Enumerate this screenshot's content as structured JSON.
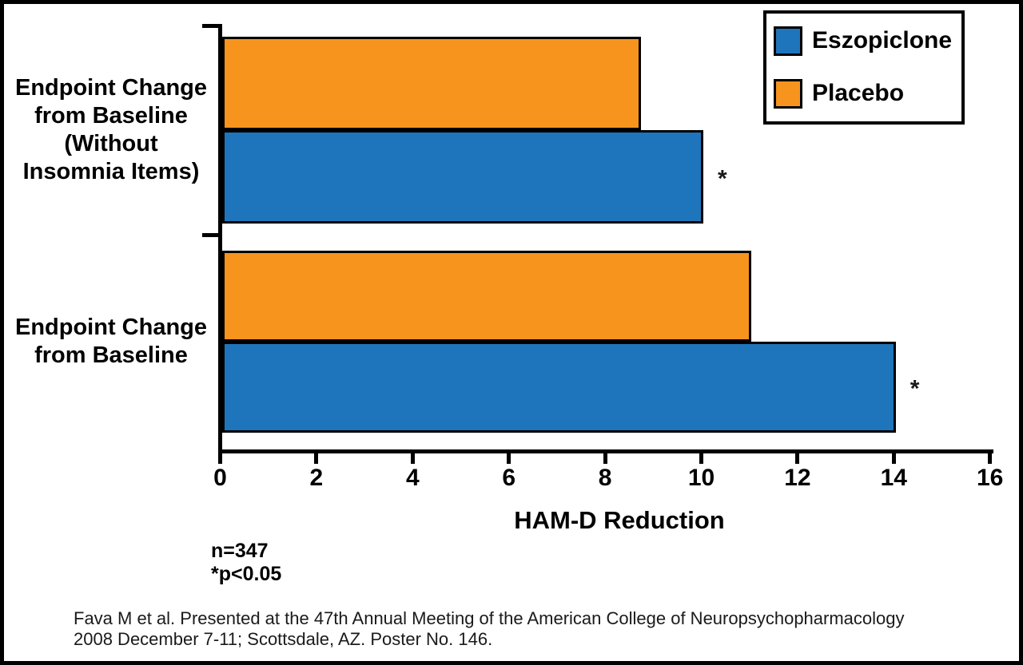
{
  "legend": {
    "items": [
      {
        "label": "Eszopiclone",
        "color": "#1F75BB"
      },
      {
        "label": "Placebo",
        "color": "#F7941E"
      }
    ]
  },
  "chart_data": {
    "type": "bar",
    "orientation": "horizontal",
    "xlabel": "HAM-D Reduction",
    "xlim": [
      0,
      16
    ],
    "xticks": [
      0,
      2,
      4,
      6,
      8,
      10,
      12,
      14,
      16
    ],
    "grid": false,
    "legend_position": "top-right",
    "categories": [
      {
        "label": "Endpoint Change from Baseline (Without Insomnia Items)",
        "lines": [
          "Endpoint Change",
          "from Baseline",
          "(Without",
          "Insomnia Items)"
        ]
      },
      {
        "label": "Endpoint Change from Baseline",
        "lines": [
          "Endpoint Change",
          "from Baseline"
        ]
      }
    ],
    "series": [
      {
        "name": "Eszopiclone",
        "color": "#1F75BB",
        "values": [
          10,
          14
        ],
        "significant": [
          true,
          true
        ]
      },
      {
        "name": "Placebo",
        "color": "#F7941E",
        "values": [
          8.7,
          11
        ],
        "significant": [
          false,
          false
        ]
      }
    ],
    "row_order_within_group": [
      "Placebo",
      "Eszopiclone"
    ],
    "significance_marker": "*",
    "bar_border_color": "#000000"
  },
  "notes": {
    "sample_size": "n=347",
    "significance": "*p<0.05"
  },
  "footnote": {
    "line1": "Fava M et al. Presented at the 47th Annual Meeting of the American College of Neuropsychopharmacology",
    "line2": "2008 December 7-11; Scottsdale, AZ. Poster No. 146."
  }
}
